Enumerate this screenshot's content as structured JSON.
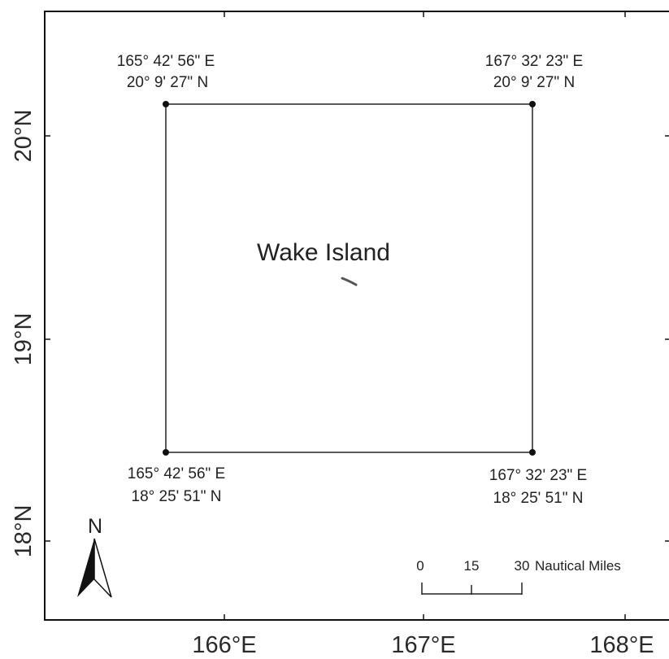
{
  "map": {
    "place_name": "Wake Island",
    "corners": {
      "top_left": {
        "lon": "165° 42' 56\" E",
        "lat": "20° 9' 27\" N"
      },
      "top_right": {
        "lon": "167° 32' 23\" E",
        "lat": "20° 9' 27\" N"
      },
      "bottom_left": {
        "lon": "165° 42' 56\" E",
        "lat": "18° 25' 51\" N"
      },
      "bottom_right": {
        "lon": "167° 32' 23\" E",
        "lat": "18° 25' 51\" N"
      }
    },
    "x_ticks": [
      "166°E",
      "167°E",
      "168°E"
    ],
    "y_ticks": [
      "20°N",
      "19°N",
      "18°N"
    ],
    "north_label": "N",
    "scale_bar": {
      "labels": [
        "0",
        "15",
        "30"
      ],
      "unit": "Nautical Miles"
    }
  }
}
